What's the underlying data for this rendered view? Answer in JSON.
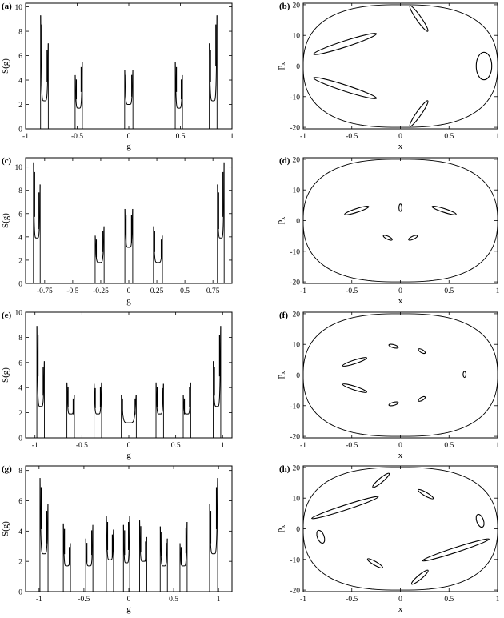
{
  "chart_data": [
    {
      "panel": "(a)",
      "type": "line",
      "xlabel": "g",
      "ylabel": "S(g)",
      "xlim": [
        -1,
        1
      ],
      "ylim": [
        0,
        10.3
      ],
      "xticks": [
        "-1",
        "-0.5",
        "0",
        "0.5",
        "1"
      ],
      "yticks": [
        "0",
        "2",
        "4",
        "6",
        "8",
        "10"
      ],
      "xtick_values": [
        -1,
        -0.5,
        0,
        0.5,
        1
      ],
      "ytick_values": [
        0,
        2,
        4,
        6,
        8,
        10
      ],
      "windows": [
        {
          "left": -0.855,
          "right": -0.78,
          "peak_left": 9.3,
          "peak_right": 7.0,
          "min": 2.3
        },
        {
          "left": -0.52,
          "right": -0.45,
          "peak_left": 4.4,
          "peak_right": 5.5,
          "min": 1.7
        },
        {
          "left": -0.04,
          "right": 0.04,
          "peak_left": 4.8,
          "peak_right": 4.8,
          "min": 2.0
        },
        {
          "left": 0.45,
          "right": 0.52,
          "peak_left": 5.5,
          "peak_right": 4.4,
          "min": 1.7
        },
        {
          "left": 0.78,
          "right": 0.855,
          "peak_left": 7.0,
          "peak_right": 9.3,
          "min": 2.3
        }
      ]
    },
    {
      "panel": "(b)",
      "type": "scatter",
      "xlabel": "x",
      "ylabel": "p_x",
      "xlim": [
        -1,
        1
      ],
      "ylim": [
        -20.5,
        20.5
      ],
      "xticks": [
        "-1",
        "-0.5",
        "0",
        "0.5",
        "1"
      ],
      "yticks": [
        "-20",
        "-10",
        "0",
        "10",
        "20"
      ],
      "xtick_values": [
        -1,
        -0.5,
        0,
        0.5,
        1
      ],
      "ytick_values": [
        -20,
        -10,
        0,
        10,
        20
      ],
      "islands": [
        {
          "x": -0.57,
          "y": 7.2,
          "len": 0.34,
          "w": 1.0,
          "angle": 18
        },
        {
          "x": -0.57,
          "y": -7.2,
          "len": 0.34,
          "w": 1.0,
          "angle": -18
        },
        {
          "x": 0.19,
          "y": 15.5,
          "len": 0.16,
          "w": 0.8,
          "angle": -55
        },
        {
          "x": 0.19,
          "y": -15.5,
          "len": 0.16,
          "w": 0.8,
          "angle": 55
        },
        {
          "x": 0.86,
          "y": 0.0,
          "len": 0.08,
          "w": 4.5,
          "angle": 0
        }
      ]
    },
    {
      "panel": "(c)",
      "type": "line",
      "xlabel": "g",
      "ylabel": "S(g)",
      "xlim": [
        -0.92,
        0.92
      ],
      "ylim": [
        0,
        10.8
      ],
      "xticks": [
        "-0.75",
        "-0.5",
        "-0.25",
        "0",
        "0.25",
        "0.5",
        "0.75"
      ],
      "yticks": [
        "0",
        "2",
        "4",
        "6",
        "8",
        "10"
      ],
      "xtick_values": [
        -0.75,
        -0.5,
        -0.25,
        0,
        0.25,
        0.5,
        0.75
      ],
      "ytick_values": [
        0,
        2,
        4,
        6,
        8,
        10
      ],
      "windows": [
        {
          "left": -0.85,
          "right": -0.79,
          "peak_left": 10.4,
          "peak_right": 8.5,
          "min": 3.9
        },
        {
          "left": -0.3,
          "right": -0.22,
          "peak_left": 4.1,
          "peak_right": 4.9,
          "min": 1.8
        },
        {
          "left": -0.035,
          "right": 0.035,
          "peak_left": 6.4,
          "peak_right": 6.4,
          "min": 3.1
        },
        {
          "left": 0.22,
          "right": 0.3,
          "peak_left": 4.9,
          "peak_right": 4.1,
          "min": 1.8
        },
        {
          "left": 0.79,
          "right": 0.85,
          "peak_left": 8.5,
          "peak_right": 10.4,
          "min": 3.9
        }
      ]
    },
    {
      "panel": "(d)",
      "type": "scatter",
      "xlabel": "x",
      "ylabel": "p_x",
      "xlim": [
        -1,
        1
      ],
      "ylim": [
        -20.5,
        20.5
      ],
      "xticks": [
        "-1",
        "-0.5",
        "0",
        "0.5",
        "1"
      ],
      "yticks": [
        "-20",
        "-10",
        "0",
        "10",
        "20"
      ],
      "xtick_values": [
        -1,
        -0.5,
        0,
        0.5,
        1
      ],
      "ytick_values": [
        -20,
        -10,
        0,
        10,
        20
      ],
      "islands": [
        {
          "x": -0.45,
          "y": 3.3,
          "len": 0.13,
          "w": 0.6,
          "angle": 18
        },
        {
          "x": 0.45,
          "y": 3.3,
          "len": 0.13,
          "w": 0.6,
          "angle": -18
        },
        {
          "x": 0.0,
          "y": 4.2,
          "len": 0.015,
          "w": 1.2,
          "angle": 0
        },
        {
          "x": -0.13,
          "y": -5.6,
          "len": 0.05,
          "w": 0.5,
          "angle": -25
        },
        {
          "x": 0.13,
          "y": -5.6,
          "len": 0.05,
          "w": 0.5,
          "angle": 25
        }
      ]
    },
    {
      "panel": "(e)",
      "type": "line",
      "xlabel": "g",
      "ylabel": "S(g)",
      "xlim": [
        -1.1,
        1.1
      ],
      "ylim": [
        0,
        10
      ],
      "xticks": [
        "-1",
        "-0.5",
        "0",
        "0.5",
        "1"
      ],
      "yticks": [
        "0",
        "2",
        "4",
        "6",
        "8",
        "10"
      ],
      "xtick_values": [
        -1,
        -0.5,
        0,
        0.5,
        1
      ],
      "ytick_values": [
        0,
        2,
        4,
        6,
        8,
        10
      ],
      "windows": [
        {
          "left": -0.98,
          "right": -0.9,
          "peak_left": 8.9,
          "peak_right": 6.1,
          "min": 2.5
        },
        {
          "left": -0.66,
          "right": -0.58,
          "peak_left": 4.4,
          "peak_right": 3.4,
          "min": 1.9
        },
        {
          "left": -0.37,
          "right": -0.29,
          "peak_left": 4.3,
          "peak_right": 4.4,
          "min": 1.9
        },
        {
          "left": -0.08,
          "right": 0.08,
          "peak_left": 3.4,
          "peak_right": 3.4,
          "min": 1.2
        },
        {
          "left": 0.29,
          "right": 0.37,
          "peak_left": 4.4,
          "peak_right": 4.3,
          "min": 1.9
        },
        {
          "left": 0.58,
          "right": 0.66,
          "peak_left": 3.4,
          "peak_right": 4.4,
          "min": 1.9
        },
        {
          "left": 0.9,
          "right": 0.98,
          "peak_left": 6.1,
          "peak_right": 8.9,
          "min": 2.5
        }
      ]
    },
    {
      "panel": "(f)",
      "type": "scatter",
      "xlabel": "x",
      "ylabel": "p_x",
      "xlim": [
        -1,
        1
      ],
      "ylim": [
        -20.5,
        20.5
      ],
      "xticks": [
        "-1",
        "-0.5",
        "0",
        "0.5",
        "1"
      ],
      "yticks": [
        "-20",
        "-10",
        "0",
        "10",
        "20"
      ],
      "xtick_values": [
        -1,
        -0.5,
        0,
        0.5,
        1
      ],
      "ytick_values": [
        -20,
        -10,
        0,
        10,
        20
      ],
      "islands": [
        {
          "x": -0.47,
          "y": 4.3,
          "len": 0.13,
          "w": 0.6,
          "angle": 18
        },
        {
          "x": -0.47,
          "y": -4.3,
          "len": 0.13,
          "w": 0.6,
          "angle": -18
        },
        {
          "x": -0.07,
          "y": 9.4,
          "len": 0.05,
          "w": 0.5,
          "angle": -15
        },
        {
          "x": -0.07,
          "y": -9.4,
          "len": 0.05,
          "w": 0.5,
          "angle": 15
        },
        {
          "x": 0.22,
          "y": 7.8,
          "len": 0.04,
          "w": 0.5,
          "angle": -30
        },
        {
          "x": 0.22,
          "y": -7.8,
          "len": 0.04,
          "w": 0.5,
          "angle": 30
        },
        {
          "x": 0.66,
          "y": 0.2,
          "len": 0.015,
          "w": 1.0,
          "angle": 0
        }
      ]
    },
    {
      "panel": "(g)",
      "type": "line",
      "xlabel": "g",
      "ylabel": "S(g)",
      "xlim": [
        -1.15,
        1.15
      ],
      "ylim": [
        0,
        8.3
      ],
      "xticks": [
        "-1",
        "-0.5",
        "0",
        "0.5",
        "1"
      ],
      "yticks": [
        "0",
        "2",
        "4",
        "6",
        "8"
      ],
      "xtick_values": [
        -1,
        -0.5,
        0,
        0.5,
        1
      ],
      "ytick_values": [
        0,
        2,
        4,
        6,
        8
      ],
      "windows": [
        {
          "left": -0.99,
          "right": -0.9,
          "peak_left": 7.5,
          "peak_right": 5.8,
          "min": 2.5
        },
        {
          "left": -0.73,
          "right": -0.65,
          "peak_left": 4.5,
          "peak_right": 3.2,
          "min": 1.7
        },
        {
          "left": -0.48,
          "right": -0.4,
          "peak_left": 3.5,
          "peak_right": 4.4,
          "min": 1.7
        },
        {
          "left": -0.25,
          "right": -0.17,
          "peak_left": 5.0,
          "peak_right": 4.1,
          "min": 2.1
        },
        {
          "left": -0.06,
          "right": 0.01,
          "peak_left": 4.4,
          "peak_right": 5.0,
          "min": 1.9
        },
        {
          "left": 0.12,
          "right": 0.2,
          "peak_left": 4.7,
          "peak_right": 3.6,
          "min": 2.0
        },
        {
          "left": 0.35,
          "right": 0.43,
          "peak_left": 4.3,
          "peak_right": 3.5,
          "min": 1.7
        },
        {
          "left": 0.57,
          "right": 0.65,
          "peak_left": 3.2,
          "peak_right": 4.6,
          "min": 1.7
        },
        {
          "left": 0.9,
          "right": 0.99,
          "peak_left": 5.8,
          "peak_right": 7.5,
          "min": 2.5
        }
      ]
    },
    {
      "panel": "(h)",
      "type": "scatter",
      "xlabel": "x",
      "ylabel": "p_x",
      "xlim": [
        -1,
        1
      ],
      "ylim": [
        -20.5,
        20.5
      ],
      "xticks": [
        "-1",
        "-0.5",
        "0",
        "0.5",
        "1"
      ],
      "yticks": [
        "-20",
        "-10",
        "0",
        "10",
        "20"
      ],
      "xtick_values": [
        -1,
        -0.5,
        0,
        0.5,
        1
      ],
      "ytick_values": [
        -20,
        -10,
        0,
        10,
        20
      ],
      "islands": [
        {
          "x": -0.57,
          "y": 6.9,
          "len": 0.36,
          "w": 0.8,
          "angle": 18
        },
        {
          "x": 0.57,
          "y": -6.9,
          "len": 0.36,
          "w": 0.8,
          "angle": 18
        },
        {
          "x": -0.82,
          "y": -2.6,
          "len": 0.035,
          "w": 2.2,
          "angle": 20
        },
        {
          "x": 0.82,
          "y": 2.6,
          "len": 0.035,
          "w": 2.2,
          "angle": 20
        },
        {
          "x": -0.2,
          "y": 15.8,
          "len": 0.11,
          "w": 0.7,
          "angle": 40
        },
        {
          "x": 0.2,
          "y": -15.8,
          "len": 0.11,
          "w": 0.7,
          "angle": 40
        },
        {
          "x": 0.26,
          "y": 11.3,
          "len": 0.09,
          "w": 0.6,
          "angle": -30
        },
        {
          "x": -0.26,
          "y": -11.3,
          "len": 0.09,
          "w": 0.6,
          "angle": -30
        }
      ]
    }
  ]
}
